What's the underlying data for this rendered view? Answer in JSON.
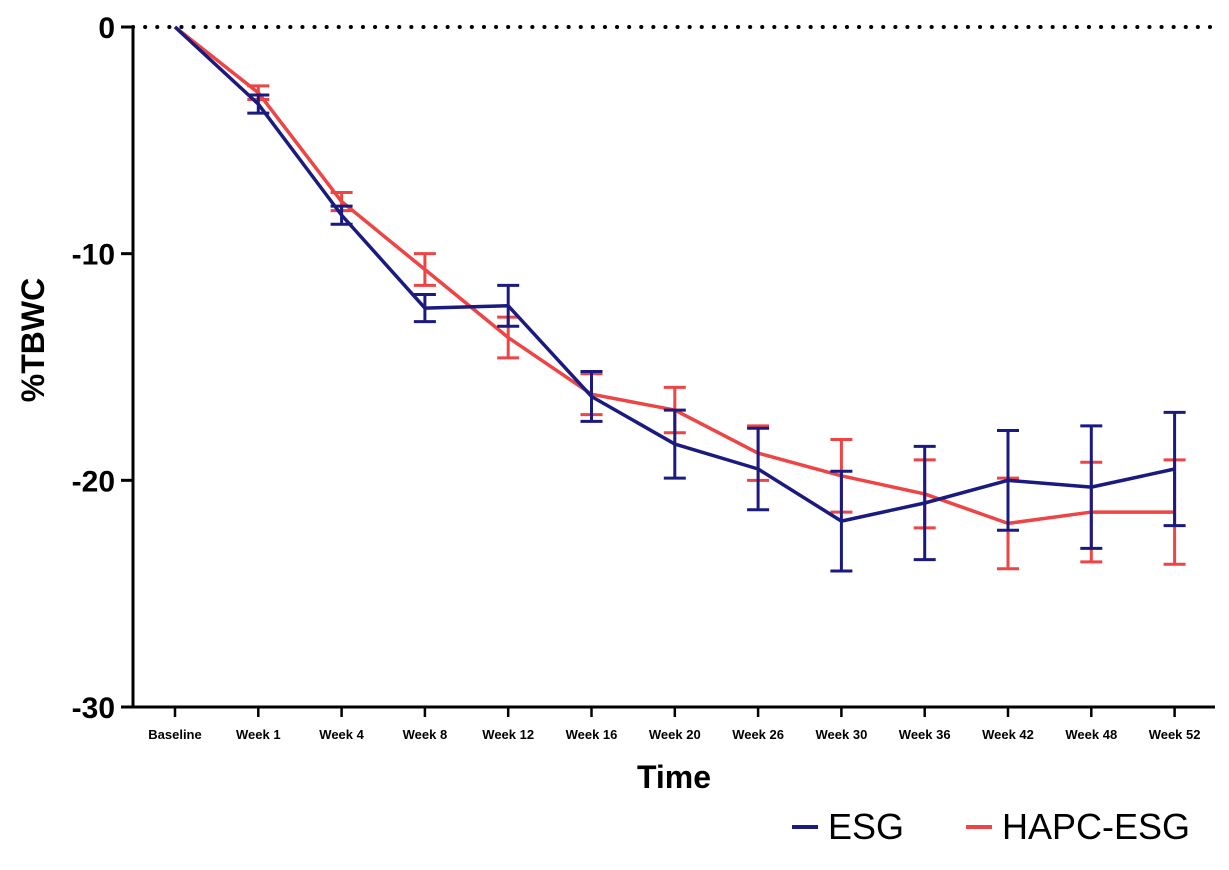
{
  "chart_data": {
    "type": "line",
    "title": "",
    "xlabel": "Time",
    "ylabel": "%TBWC",
    "ylim": [
      -30,
      0
    ],
    "yticks": [
      0,
      -10,
      -20,
      -30
    ],
    "ytick_labels": [
      "0",
      "-10",
      "-20",
      "-30"
    ],
    "categories": [
      "Baseline",
      "Week 1",
      "Week 4",
      "Week 8",
      "Week 12",
      "Week 16",
      "Week 20",
      "Week 26",
      "Week 30",
      "Week 36",
      "Week 42",
      "Week 48",
      "Week 52"
    ],
    "reference_line": {
      "y": 0,
      "style": "dotted"
    },
    "legend_position": "bottom-right",
    "series": [
      {
        "name": "ESG",
        "color": "#1a1a80",
        "values": [
          0,
          -3.4,
          -8.3,
          -12.4,
          -12.3,
          -16.3,
          -18.4,
          -19.5,
          -21.8,
          -21.0,
          -20.0,
          -20.3,
          -19.5
        ],
        "error": [
          0,
          0.4,
          0.4,
          0.6,
          0.9,
          1.1,
          1.5,
          1.8,
          2.2,
          2.5,
          2.2,
          2.7,
          2.5
        ]
      },
      {
        "name": "HAPC-ESG",
        "color": "#ee4444",
        "values": [
          0,
          -2.9,
          -7.7,
          -10.7,
          -13.7,
          -16.2,
          -16.9,
          -18.8,
          -19.8,
          -20.6,
          -21.9,
          -21.4,
          -21.4
        ],
        "error": [
          0,
          0.3,
          0.4,
          0.7,
          0.9,
          0.9,
          1.0,
          1.2,
          1.6,
          1.5,
          2.0,
          2.2,
          2.3
        ]
      }
    ]
  }
}
